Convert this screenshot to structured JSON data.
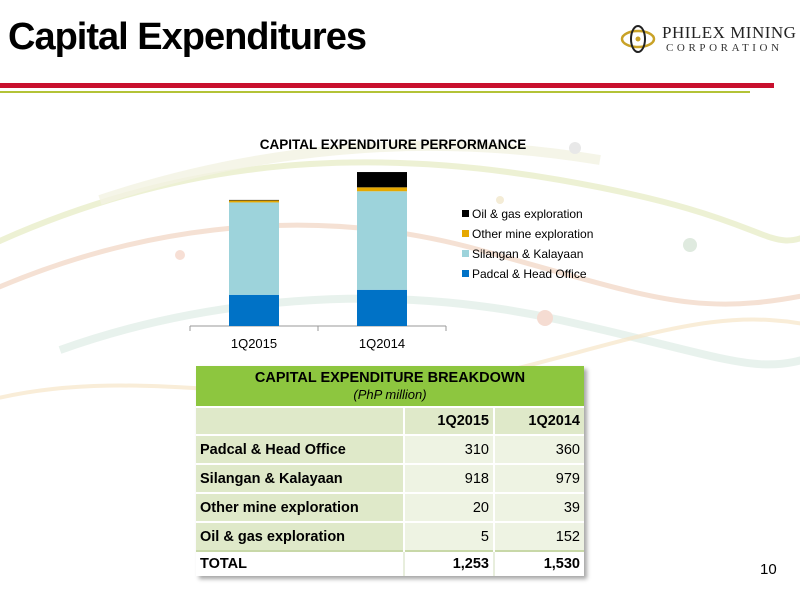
{
  "header": {
    "title": "Capital Expenditures",
    "logo_line1": "PHILEX MINING",
    "logo_line2": "CORPORATION"
  },
  "colors": {
    "red_rule": "#c8102e",
    "green_rule": "#b3c337",
    "table_header": "#8dc63f",
    "oil_gas": "#000000",
    "other_mine": "#e6a800",
    "silangan": "#9dd3db",
    "padcal": "#0072c6"
  },
  "chart_data": {
    "type": "bar",
    "stacked": true,
    "title": "CAPITAL EXPENDITURE PERFORMANCE",
    "categories": [
      "1Q2015",
      "1Q2014"
    ],
    "series": [
      {
        "name": "Padcal & Head Office",
        "values": [
          310,
          360
        ],
        "color": "#0072c6"
      },
      {
        "name": "Silangan & Kalayaan",
        "values": [
          918,
          979
        ],
        "color": "#9dd3db"
      },
      {
        "name": "Other mine exploration",
        "values": [
          20,
          39
        ],
        "color": "#e6a800"
      },
      {
        "name": "Oil & gas exploration",
        "values": [
          5,
          152
        ],
        "color": "#000000"
      }
    ],
    "legend_order": [
      "Oil & gas exploration",
      "Other mine exploration",
      "Silangan & Kalayaan",
      "Padcal & Head Office"
    ],
    "legend_position": "right",
    "ylim": [
      0,
      1600
    ],
    "grid": false
  },
  "table": {
    "title": "CAPITAL EXPENDITURE BREAKDOWN",
    "subtitle": "(PhP million)",
    "columns": [
      "1Q2015",
      "1Q2014"
    ],
    "rows": [
      {
        "label": "Padcal & Head Office",
        "values": [
          "310",
          "360"
        ]
      },
      {
        "label": "Silangan & Kalayaan",
        "values": [
          "918",
          "979"
        ]
      },
      {
        "label": "Other mine exploration",
        "values": [
          "20",
          "39"
        ]
      },
      {
        "label": "Oil & gas exploration",
        "values": [
          "5",
          "152"
        ]
      }
    ],
    "total": {
      "label": "TOTAL",
      "values": [
        "1,253",
        "1,530"
      ]
    }
  },
  "page_number": "10"
}
